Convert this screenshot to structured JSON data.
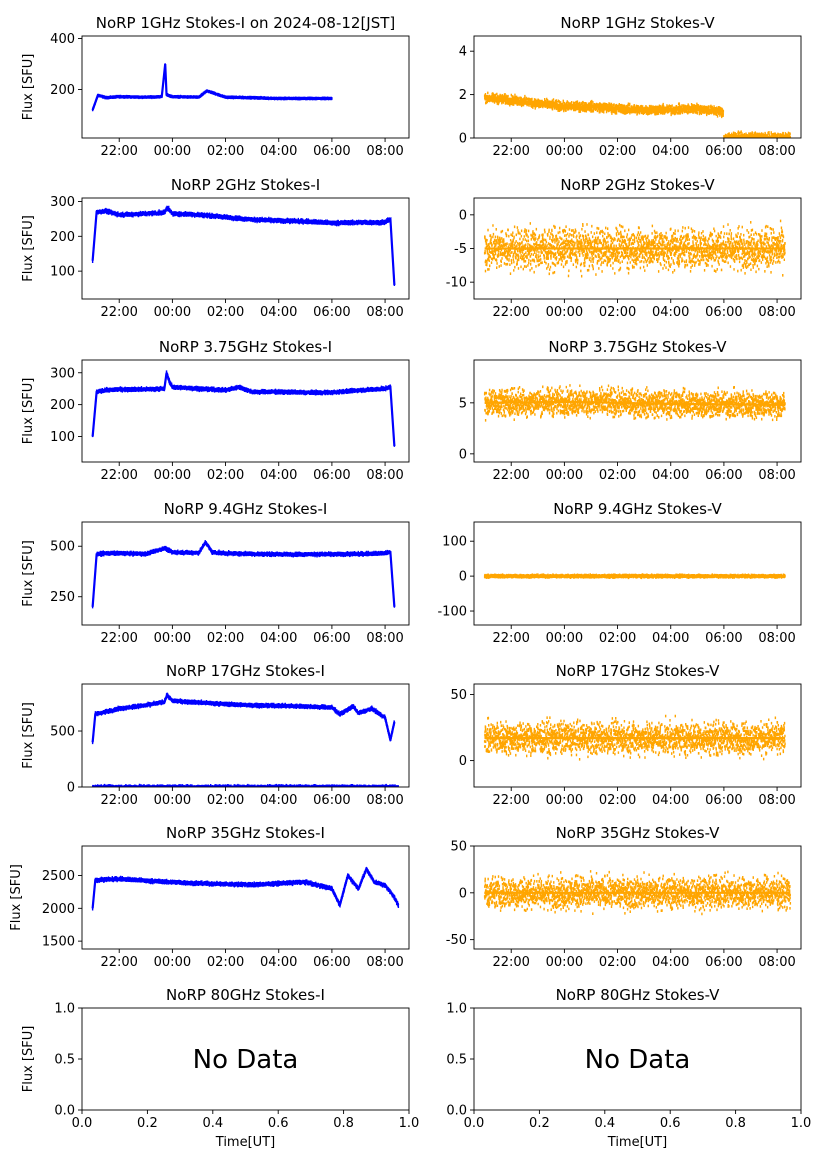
{
  "figure": {
    "time_ticks": [
      "22:00",
      "00:00",
      "02:00",
      "04:00",
      "06:00",
      "08:00"
    ],
    "y_label": "Flux [SFU]",
    "x_label": "Time[UT]",
    "no_data_text": "No Data",
    "colors": {
      "stokes_i": "#0000ff",
      "stokes_v": "#ffa500",
      "axes": "#000000",
      "background": "#ffffff"
    }
  },
  "chart_data": [
    {
      "type": "scatter",
      "title": "NoRP 1GHz Stokes-I on 2024-08-12[JST]",
      "ylabel": "Flux [SFU]",
      "xlabel": "",
      "xlim": [
        20.6,
        32.9
      ],
      "ylim": [
        10,
        410
      ],
      "yticks": [
        200,
        400
      ],
      "color": "#0000ff",
      "series": [
        {
          "x": [
            21.0,
            21.2,
            21.5,
            22.0,
            23.0,
            23.6,
            23.73,
            23.78,
            24.0,
            25.0,
            25.3,
            26.0,
            27.0,
            28.0,
            29.0,
            30.0
          ],
          "y": [
            120,
            178,
            168,
            172,
            170,
            172,
            300,
            180,
            172,
            170,
            195,
            170,
            168,
            165,
            165,
            165
          ]
        }
      ],
      "noise": 4
    },
    {
      "type": "scatter",
      "title": "NoRP 1GHz Stokes-V",
      "ylabel": "",
      "xlabel": "",
      "xlim": [
        20.6,
        32.9
      ],
      "ylim": [
        0,
        4.7
      ],
      "yticks": [
        0,
        2,
        4
      ],
      "color": "#ffa500",
      "series": [
        {
          "x": [
            21.0,
            22.0,
            23.0,
            24.0,
            25.0,
            26.0,
            27.0,
            28.0,
            29.0,
            29.98
          ],
          "y": [
            1.85,
            1.75,
            1.6,
            1.45,
            1.45,
            1.35,
            1.3,
            1.3,
            1.35,
            1.2
          ]
        },
        {
          "x": [
            30.0,
            31.0,
            32.0,
            32.5
          ],
          "y": [
            0.02,
            0.02,
            0.02,
            0.02
          ]
        }
      ],
      "noise": 0.35
    },
    {
      "type": "scatter",
      "title": "NoRP 2GHz Stokes-I",
      "ylabel": "Flux [SFU]",
      "xlabel": "",
      "xlim": [
        20.6,
        32.9
      ],
      "ylim": [
        20,
        310
      ],
      "yticks": [
        100,
        200,
        300
      ],
      "color": "#0000ff",
      "series": [
        {
          "x": [
            21.0,
            21.15,
            21.5,
            22.0,
            23.0,
            23.7,
            23.8,
            24.0,
            25.0,
            26.0,
            27.0,
            28.0,
            29.0,
            30.0,
            31.0,
            32.0,
            32.2,
            32.35
          ],
          "y": [
            130,
            270,
            272,
            262,
            265,
            268,
            283,
            265,
            262,
            255,
            248,
            245,
            243,
            238,
            240,
            240,
            250,
            60
          ]
        }
      ],
      "noise": 8
    },
    {
      "type": "scatter",
      "title": "NoRP 2GHz Stokes-V",
      "ylabel": "",
      "xlabel": "",
      "xlim": [
        20.6,
        32.9
      ],
      "ylim": [
        -12.5,
        2.5
      ],
      "yticks": [
        -10,
        -5,
        0
      ],
      "color": "#ffa500",
      "series": [
        {
          "x": [
            21.0,
            24.0,
            28.0,
            32.3
          ],
          "y": [
            -5,
            -5,
            -5,
            -5
          ]
        }
      ],
      "noise": 5
    },
    {
      "type": "scatter",
      "title": "NoRP 3.75GHz Stokes-I",
      "ylabel": "Flux [SFU]",
      "xlabel": "",
      "xlim": [
        20.6,
        32.9
      ],
      "ylim": [
        20,
        340
      ],
      "yticks": [
        100,
        200,
        300
      ],
      "color": "#0000ff",
      "series": [
        {
          "x": [
            21.0,
            21.15,
            21.5,
            22.0,
            23.0,
            23.7,
            23.78,
            23.9,
            24.0,
            25.0,
            26.0,
            26.5,
            27.0,
            28.0,
            29.0,
            30.0,
            31.0,
            32.0,
            32.2,
            32.35
          ],
          "y": [
            100,
            240,
            245,
            248,
            248,
            250,
            300,
            270,
            255,
            250,
            245,
            255,
            240,
            240,
            238,
            238,
            245,
            250,
            255,
            70
          ]
        }
      ],
      "noise": 8
    },
    {
      "type": "scatter",
      "title": "NoRP 3.75GHz Stokes-V",
      "ylabel": "",
      "xlabel": "",
      "xlim": [
        20.6,
        32.9
      ],
      "ylim": [
        -0.8,
        9.2
      ],
      "yticks": [
        0,
        5
      ],
      "color": "#ffa500",
      "series": [
        {
          "x": [
            21.0,
            24.0,
            28.0,
            32.3
          ],
          "y": [
            5,
            5.1,
            4.9,
            4.8
          ]
        }
      ],
      "noise": 2.2
    },
    {
      "type": "scatter",
      "title": "NoRP 9.4GHz Stokes-I",
      "ylabel": "Flux [SFU]",
      "xlabel": "",
      "xlim": [
        20.6,
        32.9
      ],
      "ylim": [
        110,
        620
      ],
      "yticks": [
        250,
        500
      ],
      "color": "#0000ff",
      "series": [
        {
          "x": [
            21.0,
            21.15,
            21.5,
            22.0,
            23.0,
            23.7,
            24.0,
            25.0,
            25.25,
            25.5,
            26.0,
            27.0,
            28.0,
            29.0,
            30.0,
            31.0,
            32.0,
            32.2,
            32.35
          ],
          "y": [
            200,
            460,
            465,
            465,
            462,
            490,
            470,
            468,
            520,
            470,
            465,
            462,
            460,
            460,
            460,
            462,
            465,
            470,
            200
          ]
        }
      ],
      "noise": 12
    },
    {
      "type": "scatter",
      "title": "NoRP 9.4GHz Stokes-V",
      "ylabel": "",
      "xlabel": "",
      "xlim": [
        20.6,
        32.9
      ],
      "ylim": [
        -140,
        155
      ],
      "yticks": [
        -100,
        0,
        100
      ],
      "color": "#ffa500",
      "series": [
        {
          "x": [
            21.0,
            24.0,
            28.0,
            32.3
          ],
          "y": [
            0,
            0,
            0,
            0
          ]
        }
      ],
      "noise": 6
    },
    {
      "type": "scatter",
      "title": "NoRP 17GHz Stokes-I",
      "ylabel": "Flux [SFU]",
      "xlabel": "",
      "xlim": [
        20.6,
        32.9
      ],
      "ylim": [
        0,
        920
      ],
      "yticks": [
        0,
        500
      ],
      "color": "#0000ff",
      "series": [
        {
          "x": [
            21.0,
            21.1,
            22.0,
            23.0,
            23.7,
            23.8,
            24.0,
            25.0,
            26.0,
            27.0,
            28.0,
            29.0,
            30.0,
            30.3,
            30.8,
            31.0,
            31.5,
            32.0,
            32.2,
            32.35
          ],
          "y": [
            400,
            650,
            700,
            730,
            760,
            820,
            770,
            755,
            740,
            730,
            725,
            720,
            710,
            650,
            720,
            660,
            700,
            620,
            420,
            580
          ]
        },
        {
          "x": [
            21.0,
            24.0,
            28.0,
            32.5
          ],
          "y": [
            0,
            0,
            0,
            0
          ]
        }
      ],
      "noise": 22
    },
    {
      "type": "scatter",
      "title": "NoRP 17GHz Stokes-V",
      "ylabel": "",
      "xlabel": "",
      "xlim": [
        20.6,
        32.9
      ],
      "ylim": [
        -20,
        58
      ],
      "yticks": [
        0,
        50
      ],
      "color": "#ffa500",
      "series": [
        {
          "x": [
            21.0,
            24.0,
            28.0,
            32.3
          ],
          "y": [
            17,
            17,
            17,
            17
          ]
        }
      ],
      "noise": 20
    },
    {
      "type": "scatter",
      "title": "NoRP 35GHz Stokes-I",
      "ylabel": "Flux [SFU]",
      "xlabel": "",
      "xlim": [
        20.6,
        32.9
      ],
      "ylim": [
        1380,
        2950
      ],
      "yticks": [
        1500,
        2000,
        2500
      ],
      "color": "#0000ff",
      "series": [
        {
          "x": [
            21.0,
            21.1,
            22.0,
            23.0,
            24.0,
            25.0,
            26.0,
            27.0,
            28.0,
            29.0,
            29.5,
            30.0,
            30.3,
            30.6,
            31.0,
            31.3,
            31.6,
            32.0,
            32.3,
            32.5
          ],
          "y": [
            2000,
            2430,
            2450,
            2420,
            2400,
            2380,
            2370,
            2360,
            2380,
            2400,
            2350,
            2300,
            2050,
            2500,
            2300,
            2600,
            2400,
            2350,
            2200,
            2050
          ]
        }
      ],
      "noise": 40
    },
    {
      "type": "scatter",
      "title": "NoRP 35GHz Stokes-V",
      "ylabel": "",
      "xlabel": "",
      "xlim": [
        20.6,
        32.9
      ],
      "ylim": [
        -60,
        50
      ],
      "yticks": [
        -50,
        0,
        50
      ],
      "color": "#ffa500",
      "series": [
        {
          "x": [
            21.0,
            24.0,
            28.0,
            32.5
          ],
          "y": [
            0,
            0,
            0,
            0
          ]
        }
      ],
      "noise": 28
    },
    {
      "type": "scatter",
      "title": "NoRP 80GHz Stokes-I",
      "ylabel": "Flux [SFU]",
      "xlabel": "Time[UT]",
      "xlim": [
        0,
        1
      ],
      "ylim": [
        0,
        1
      ],
      "xticks": [
        0.0,
        0.2,
        0.4,
        0.6,
        0.8,
        1.0
      ],
      "yticks": [
        0.0,
        0.5,
        1.0
      ],
      "color": "#0000ff",
      "series": [],
      "empty": true
    },
    {
      "type": "scatter",
      "title": "NoRP 80GHz Stokes-V",
      "ylabel": "",
      "xlabel": "Time[UT]",
      "xlim": [
        0,
        1
      ],
      "ylim": [
        0,
        1
      ],
      "xticks": [
        0.0,
        0.2,
        0.4,
        0.6,
        0.8,
        1.0
      ],
      "yticks": [
        0.0,
        0.5,
        1.0
      ],
      "color": "#ffa500",
      "series": [],
      "empty": true
    }
  ]
}
